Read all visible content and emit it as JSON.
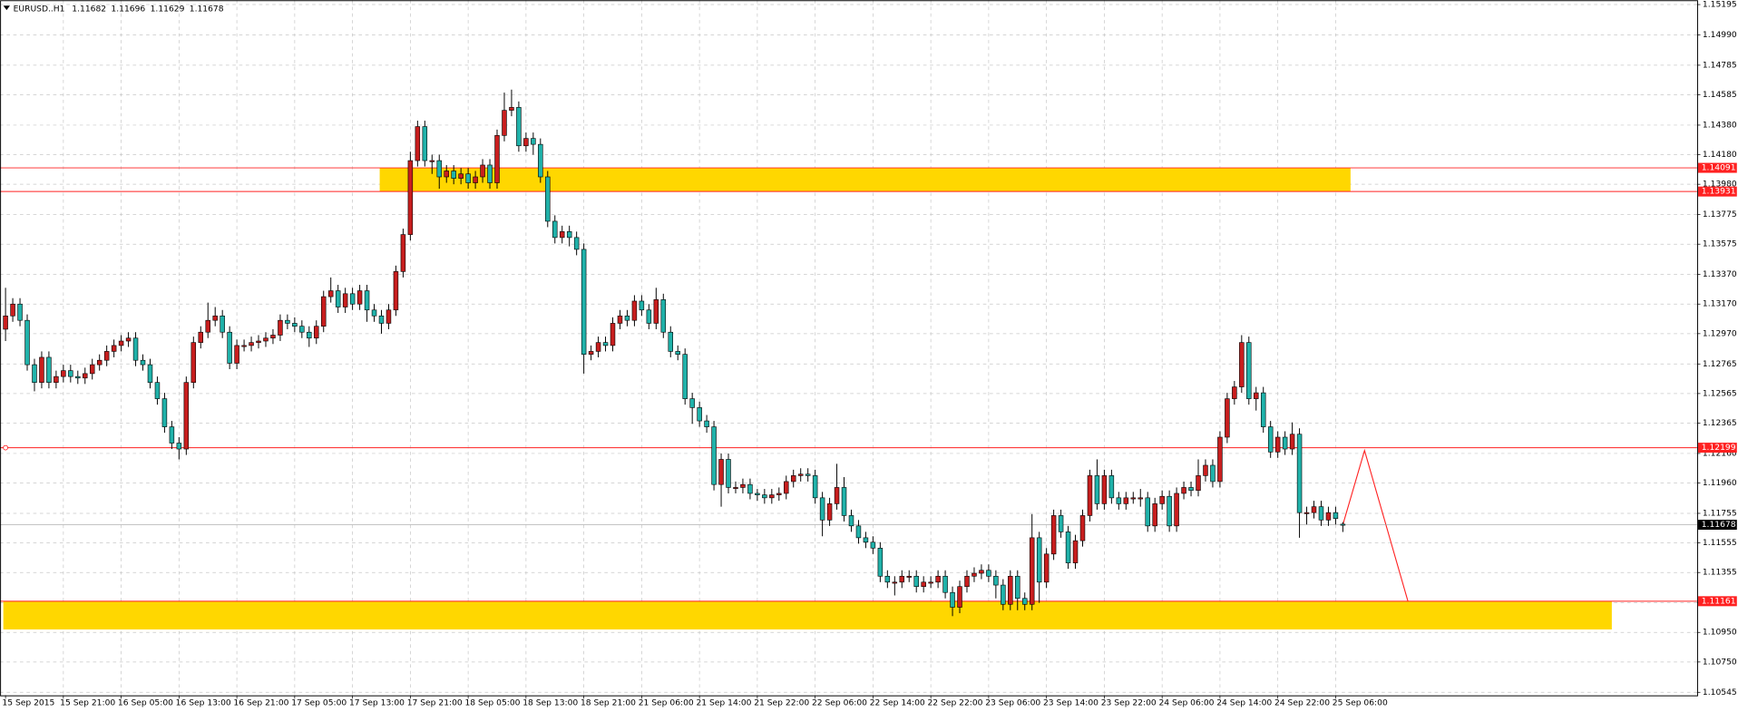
{
  "chart_data": {
    "type": "candlestick",
    "symbol": "EURUSD..H1",
    "open": [
      1.13,
      1.1309,
      1.1317,
      1.1306,
      1.1276,
      1.1264,
      1.1281,
      1.1264,
      1.1268,
      1.1272,
      1.1268,
      1.1267,
      1.127,
      1.1276,
      1.1279,
      1.1285,
      1.1289,
      1.1292,
      1.1294,
      1.1279,
      1.1276,
      1.1264,
      1.1253,
      1.1234,
      1.1223,
      1.1219,
      1.1264,
      1.1291,
      1.1298,
      1.1306,
      1.1309,
      1.1298,
      1.1277,
      1.1289,
      1.1289,
      1.1291,
      1.1292,
      1.1294,
      1.1296,
      1.1306,
      1.1304,
      1.1302,
      1.1298,
      1.1294,
      1.1302,
      1.1322,
      1.1326,
      1.1315,
      1.1324,
      1.1317,
      1.1326,
      1.1313,
      1.1309,
      1.1304,
      1.1313,
      1.1339,
      1.1364,
      1.1414,
      1.1437,
      1.1414,
      1.1414,
      1.1403,
      1.1407,
      1.1402,
      1.1405,
      1.1399,
      1.1403,
      1.1411,
      1.1399,
      1.1431,
      1.1448,
      1.145,
      1.1424,
      1.1429,
      1.1425,
      1.1403,
      1.1373,
      1.1362,
      1.1366,
      1.1362,
      1.1354,
      1.1283,
      1.1285,
      1.1291,
      1.1289,
      1.1304,
      1.1309,
      1.1306,
      1.1319,
      1.1313,
      1.1304,
      1.132,
      1.1298,
      1.1285,
      1.1283,
      1.1253,
      1.1247,
      1.1238,
      1.1234,
      1.1195,
      1.1212,
      1.1193,
      1.1193,
      1.1195,
      1.1189,
      1.1188,
      1.1186,
      1.1188,
      1.1189,
      1.1197,
      1.1201,
      1.1202,
      1.1201,
      1.1186,
      1.1171,
      1.1182,
      1.1193,
      1.1174,
      1.1167,
      1.1159,
      1.1156,
      1.1152,
      1.1133,
      1.1129,
      1.1129,
      1.1133,
      1.1133,
      1.1126,
      1.1129,
      1.1129,
      1.1133,
      1.1122,
      1.1112,
      1.1126,
      1.1133,
      1.1135,
      1.1137,
      1.1133,
      1.1127,
      1.1114,
      1.1133,
      1.1118,
      1.1114,
      1.1159,
      1.1129,
      1.1148,
      1.1174,
      1.1163,
      1.1142,
      1.1157,
      1.1174,
      1.1201,
      1.1182,
      1.1201,
      1.1186,
      1.1182,
      1.1186,
      1.1186,
      1.1186,
      1.1167,
      1.1182,
      1.1187,
      1.1167,
      1.1189,
      1.1193,
      1.1191,
      1.1201,
      1.1208,
      1.1197,
      1.1227,
      1.1253,
      1.1261,
      1.1291,
      1.1253,
      1.1257,
      1.1234,
      1.1217,
      1.1227,
      1.1219,
      1.1229,
      1.1176,
      1.1176,
      1.118,
      1.1171,
      1.1176,
      1.11682
    ],
    "high": [
      1.1328,
      1.1321,
      1.1321,
      1.131,
      1.128,
      1.1285,
      1.1285,
      1.1272,
      1.1276,
      1.1276,
      1.1272,
      1.1274,
      1.128,
      1.1283,
      1.1289,
      1.1293,
      1.1296,
      1.1298,
      1.1298,
      1.1283,
      1.128,
      1.1268,
      1.1257,
      1.1238,
      1.1227,
      1.1268,
      1.1295,
      1.1302,
      1.1318,
      1.1315,
      1.1313,
      1.1302,
      1.1293,
      1.1293,
      1.1295,
      1.1296,
      1.1298,
      1.13,
      1.131,
      1.131,
      1.1308,
      1.1306,
      1.1302,
      1.1306,
      1.1326,
      1.1335,
      1.133,
      1.1328,
      1.1328,
      1.133,
      1.133,
      1.1317,
      1.1313,
      1.1317,
      1.1343,
      1.1368,
      1.142,
      1.1441,
      1.1441,
      1.1418,
      1.1418,
      1.1411,
      1.1411,
      1.1409,
      1.1409,
      1.1407,
      1.1415,
      1.1415,
      1.1435,
      1.146,
      1.1462,
      1.1454,
      1.1433,
      1.1433,
      1.1429,
      1.1407,
      1.1377,
      1.137,
      1.137,
      1.1366,
      1.1358,
      1.1289,
      1.1295,
      1.1295,
      1.1308,
      1.1313,
      1.1313,
      1.1323,
      1.1323,
      1.1317,
      1.1328,
      1.1324,
      1.1302,
      1.1289,
      1.1287,
      1.1257,
      1.1251,
      1.1242,
      1.1238,
      1.1216,
      1.1216,
      1.1197,
      1.1199,
      1.1199,
      1.1192,
      1.1192,
      1.1192,
      1.1193,
      1.1201,
      1.1205,
      1.1206,
      1.1206,
      1.1205,
      1.119,
      1.1186,
      1.1209,
      1.12,
      1.1178,
      1.1171,
      1.1163,
      1.116,
      1.1156,
      1.1137,
      1.1133,
      1.1137,
      1.1137,
      1.1137,
      1.1133,
      1.1133,
      1.1137,
      1.1137,
      1.1126,
      1.113,
      1.1137,
      1.1139,
      1.1141,
      1.1141,
      1.1137,
      1.1131,
      1.1137,
      1.1137,
      1.1122,
      1.1175,
      1.1163,
      1.1152,
      1.1178,
      1.1178,
      1.1167,
      1.1161,
      1.1178,
      1.1205,
      1.1212,
      1.1205,
      1.1205,
      1.119,
      1.119,
      1.119,
      1.1192,
      1.119,
      1.1186,
      1.1191,
      1.1191,
      1.1193,
      1.1197,
      1.1197,
      1.1212,
      1.1212,
      1.1212,
      1.1231,
      1.1257,
      1.1265,
      1.1296,
      1.1295,
      1.1261,
      1.1261,
      1.1238,
      1.1231,
      1.1231,
      1.1237,
      1.1233,
      1.118,
      1.1184,
      1.1184,
      1.118,
      1.118,
      1.11696
    ],
    "low": [
      1.1292,
      1.1305,
      1.1302,
      1.1272,
      1.1258,
      1.126,
      1.126,
      1.126,
      1.1264,
      1.1264,
      1.1263,
      1.1263,
      1.1266,
      1.1272,
      1.1275,
      1.1281,
      1.1285,
      1.1288,
      1.1275,
      1.1272,
      1.126,
      1.1249,
      1.123,
      1.1219,
      1.1212,
      1.1215,
      1.126,
      1.1287,
      1.1294,
      1.1302,
      1.1294,
      1.1273,
      1.1273,
      1.1285,
      1.1285,
      1.1287,
      1.1288,
      1.129,
      1.1292,
      1.13,
      1.1298,
      1.1294,
      1.1288,
      1.129,
      1.1298,
      1.1318,
      1.1311,
      1.1311,
      1.1313,
      1.1313,
      1.1305,
      1.1305,
      1.1297,
      1.13,
      1.1309,
      1.1335,
      1.136,
      1.141,
      1.141,
      1.1405,
      1.1395,
      1.1399,
      1.1398,
      1.1398,
      1.1395,
      1.1395,
      1.1399,
      1.1395,
      1.1395,
      1.1427,
      1.1444,
      1.142,
      1.142,
      1.1418,
      1.1399,
      1.1369,
      1.1358,
      1.1358,
      1.1356,
      1.135,
      1.127,
      1.1279,
      1.1281,
      1.1285,
      1.1285,
      1.13,
      1.1302,
      1.1302,
      1.1309,
      1.13,
      1.13,
      1.1294,
      1.1281,
      1.1279,
      1.1249,
      1.1236,
      1.1234,
      1.123,
      1.1191,
      1.118,
      1.1189,
      1.1189,
      1.1189,
      1.1185,
      1.1184,
      1.1182,
      1.1182,
      1.1184,
      1.1185,
      1.1193,
      1.1197,
      1.1197,
      1.1182,
      1.116,
      1.1167,
      1.1178,
      1.117,
      1.1163,
      1.1155,
      1.1152,
      1.1148,
      1.1129,
      1.1125,
      1.112,
      1.1125,
      1.1129,
      1.1122,
      1.1122,
      1.1125,
      1.1125,
      1.1118,
      1.1106,
      1.1108,
      1.1122,
      1.1129,
      1.1131,
      1.1129,
      1.1118,
      1.111,
      1.111,
      1.111,
      1.111,
      1.111,
      1.1115,
      1.1125,
      1.1144,
      1.1159,
      1.1138,
      1.1138,
      1.1153,
      1.117,
      1.1178,
      1.1178,
      1.1182,
      1.1178,
      1.1178,
      1.1182,
      1.118,
      1.1163,
      1.1163,
      1.1178,
      1.1163,
      1.1163,
      1.1185,
      1.1187,
      1.1187,
      1.1197,
      1.1193,
      1.1193,
      1.1223,
      1.1249,
      1.1257,
      1.1249,
      1.1245,
      1.123,
      1.1213,
      1.1213,
      1.1215,
      1.1215,
      1.1159,
      1.1168,
      1.1172,
      1.1167,
      1.1167,
      1.1168,
      1.11629
    ],
    "close": [
      1.1309,
      1.1317,
      1.1306,
      1.1276,
      1.1264,
      1.1281,
      1.1264,
      1.1268,
      1.1272,
      1.1268,
      1.1267,
      1.127,
      1.1276,
      1.1279,
      1.1285,
      1.1289,
      1.1292,
      1.1294,
      1.1279,
      1.1276,
      1.1264,
      1.1253,
      1.1234,
      1.1223,
      1.1219,
      1.1264,
      1.1291,
      1.1298,
      1.1306,
      1.1309,
      1.1298,
      1.1277,
      1.1289,
      1.1289,
      1.1291,
      1.1292,
      1.1294,
      1.1296,
      1.1306,
      1.1304,
      1.1302,
      1.1298,
      1.1294,
      1.1302,
      1.1322,
      1.1326,
      1.1315,
      1.1324,
      1.1317,
      1.1326,
      1.1313,
      1.1309,
      1.1304,
      1.1313,
      1.1339,
      1.1364,
      1.1414,
      1.1437,
      1.1414,
      1.1414,
      1.1403,
      1.1407,
      1.1402,
      1.1405,
      1.1399,
      1.1403,
      1.1411,
      1.1399,
      1.1431,
      1.1448,
      1.145,
      1.1424,
      1.1429,
      1.1425,
      1.1403,
      1.1373,
      1.1362,
      1.1366,
      1.1362,
      1.1354,
      1.1283,
      1.1285,
      1.1291,
      1.1289,
      1.1304,
      1.1309,
      1.1306,
      1.1319,
      1.1313,
      1.1304,
      1.132,
      1.1298,
      1.1285,
      1.1283,
      1.1253,
      1.1247,
      1.1238,
      1.1234,
      1.1195,
      1.1212,
      1.1193,
      1.1193,
      1.1195,
      1.1189,
      1.1188,
      1.1186,
      1.1188,
      1.1189,
      1.1197,
      1.1201,
      1.1202,
      1.1201,
      1.1186,
      1.1171,
      1.1182,
      1.1193,
      1.1174,
      1.1167,
      1.1159,
      1.1156,
      1.1152,
      1.1133,
      1.1129,
      1.1129,
      1.1133,
      1.1133,
      1.1126,
      1.1129,
      1.1129,
      1.1133,
      1.1122,
      1.1112,
      1.1126,
      1.1133,
      1.1135,
      1.1137,
      1.1133,
      1.1127,
      1.1114,
      1.1133,
      1.1118,
      1.1114,
      1.1159,
      1.1129,
      1.1148,
      1.1174,
      1.1163,
      1.1142,
      1.1157,
      1.1174,
      1.1201,
      1.1182,
      1.1201,
      1.1186,
      1.1182,
      1.1186,
      1.1186,
      1.1186,
      1.1167,
      1.1182,
      1.1187,
      1.1167,
      1.1189,
      1.1193,
      1.1191,
      1.1201,
      1.1208,
      1.1197,
      1.1227,
      1.1253,
      1.1261,
      1.1291,
      1.1253,
      1.1257,
      1.1234,
      1.1217,
      1.1227,
      1.1219,
      1.1229,
      1.1176,
      1.1176,
      1.118,
      1.1171,
      1.1176,
      1.1172,
      1.11678
    ],
    "xticks": [
      {
        "value": 0,
        "label": "15 Sep 2015"
      },
      {
        "value": 8,
        "label": "15 Sep 21:00"
      },
      {
        "value": 16,
        "label": "16 Sep 05:00"
      },
      {
        "value": 24,
        "label": "16 Sep 13:00"
      },
      {
        "value": 32,
        "label": "16 Sep 21:00"
      },
      {
        "value": 40,
        "label": "17 Sep 05:00"
      },
      {
        "value": 48,
        "label": "17 Sep 13:00"
      },
      {
        "value": 56,
        "label": "17 Sep 21:00"
      },
      {
        "value": 64,
        "label": "18 Sep 05:00"
      },
      {
        "value": 72,
        "label": "18 Sep 13:00"
      },
      {
        "value": 80,
        "label": "18 Sep 21:00"
      },
      {
        "value": 88,
        "label": "21 Sep 06:00"
      },
      {
        "value": 96,
        "label": "21 Sep 14:00"
      },
      {
        "value": 104,
        "label": "21 Sep 22:00"
      },
      {
        "value": 112,
        "label": "22 Sep 06:00"
      },
      {
        "value": 120,
        "label": "22 Sep 14:00"
      },
      {
        "value": 128,
        "label": "22 Sep 22:00"
      },
      {
        "value": 136,
        "label": "23 Sep 06:00"
      },
      {
        "value": 144,
        "label": "23 Sep 14:00"
      },
      {
        "value": 152,
        "label": "23 Sep 22:00"
      },
      {
        "value": 160,
        "label": "24 Sep 06:00"
      },
      {
        "value": 168,
        "label": "24 Sep 14:00"
      },
      {
        "value": 176,
        "label": "24 Sep 22:00"
      },
      {
        "value": 184,
        "label": "25 Sep 06:00"
      }
    ],
    "ylim": [
      1.10525,
      1.15225
    ],
    "yticks": [
      1.15195,
      {
        "value": 1.1499,
        "label": "1.14990"
      },
      1.14785,
      1.14585,
      {
        "value": 1.1438,
        "label": "1.14380"
      },
      {
        "value": 1.1418,
        "label": "1.14180"
      },
      {
        "value": 1.1398,
        "label": "1.13980"
      },
      1.13775,
      1.13575,
      {
        "value": 1.1337,
        "label": "1.13370"
      },
      {
        "value": 1.1317,
        "label": "1.13170"
      },
      {
        "value": 1.1297,
        "label": "1.12970"
      },
      1.12765,
      1.12565,
      1.12365,
      {
        "value": 1.1216,
        "label": "1.12160"
      },
      {
        "value": 1.1196,
        "label": "1.11960"
      },
      1.11755,
      1.11555,
      1.11355,
      {
        "value": 1.1115,
        "label": "1.11150"
      },
      {
        "value": 1.1095,
        "label": "1.10950"
      },
      {
        "value": 1.1075,
        "label": "1.10750"
      },
      1.10545
    ],
    "grid": true,
    "up_color": "#c81e1e",
    "down_color": "#20b2aa",
    "hlines": [
      1.14091,
      1.13931,
      1.12199,
      1.11161
    ],
    "hline_color": "#ff2020",
    "zones": [
      {
        "top": 1.14091,
        "bottom": 1.13931
      },
      {
        "top": 1.11161,
        "bottom": 1.1097
      }
    ],
    "zone_color": "#ffd700",
    "forecast": [
      1.11678,
      1.1218,
      1.11161
    ],
    "forecast_color": "#ff2020"
  }
}
